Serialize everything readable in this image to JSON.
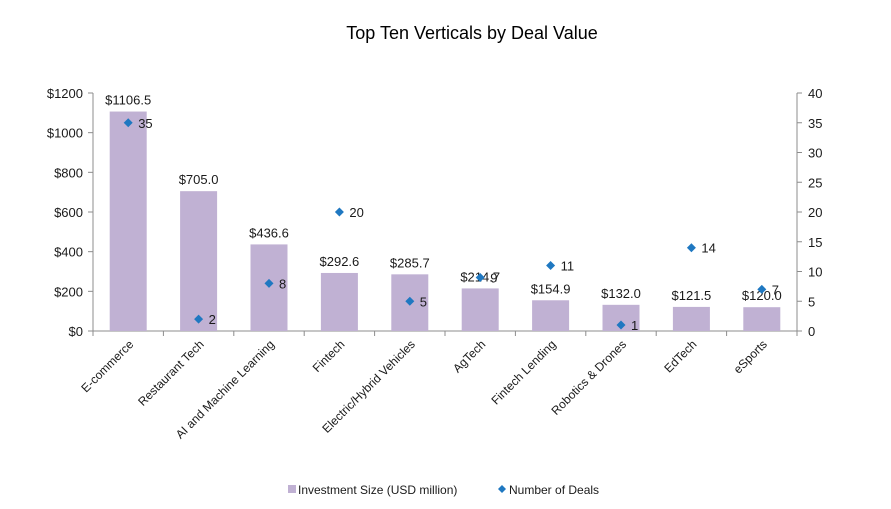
{
  "chart_data": {
    "type": "bar",
    "title": "Top Ten Verticals by Deal Value",
    "xlabel": "",
    "ylabel": "",
    "categories": [
      "E-commerce",
      "Restaurant Tech",
      "AI and Machine Learning",
      "Fintech",
      "Electric/Hybrid Vehicles",
      "AgTech",
      "Fintech Lending",
      "Robotics & Drones",
      "EdTech",
      "eSports"
    ],
    "series": [
      {
        "name": "Investment Size (USD million)",
        "type": "bar",
        "axis": "left",
        "color": "#C0B1D3",
        "values": [
          1106.5,
          705.0,
          436.6,
          292.6,
          285.7,
          214.7,
          154.9,
          132.0,
          121.5,
          120.0
        ],
        "labels": [
          "$1106.5",
          "$705.0",
          "$436.6",
          "$292.6",
          "$285.7",
          "$214.7",
          "$154.9",
          "$132.0",
          "$121.5",
          "$120.0"
        ]
      },
      {
        "name": "Number of Deals",
        "type": "scatter",
        "marker": "diamond",
        "axis": "right",
        "color": "#1F78C1",
        "values": [
          35,
          2,
          8,
          20,
          5,
          9,
          11,
          1,
          14,
          7
        ],
        "labels": [
          "35",
          "2",
          "8",
          "20",
          "5",
          "9",
          "11",
          "1",
          "14",
          "7"
        ]
      }
    ],
    "left_axis": {
      "ylim": [
        0,
        1200
      ],
      "ticks": [
        0,
        200,
        400,
        600,
        800,
        1000,
        1200
      ],
      "tick_labels": [
        "$0",
        "$200",
        "$400",
        "$600",
        "$800",
        "$1000",
        "$1200"
      ]
    },
    "right_axis": {
      "ylim": [
        0,
        40
      ],
      "ticks": [
        0,
        5,
        10,
        15,
        20,
        25,
        30,
        35,
        40
      ],
      "tick_labels": [
        "0",
        "5",
        "10",
        "15",
        "20",
        "25",
        "30",
        "35",
        "40"
      ]
    },
    "grid": false,
    "legend_position": "bottom-center",
    "legend": [
      "Investment Size (USD million)",
      "Number of Deals"
    ]
  }
}
